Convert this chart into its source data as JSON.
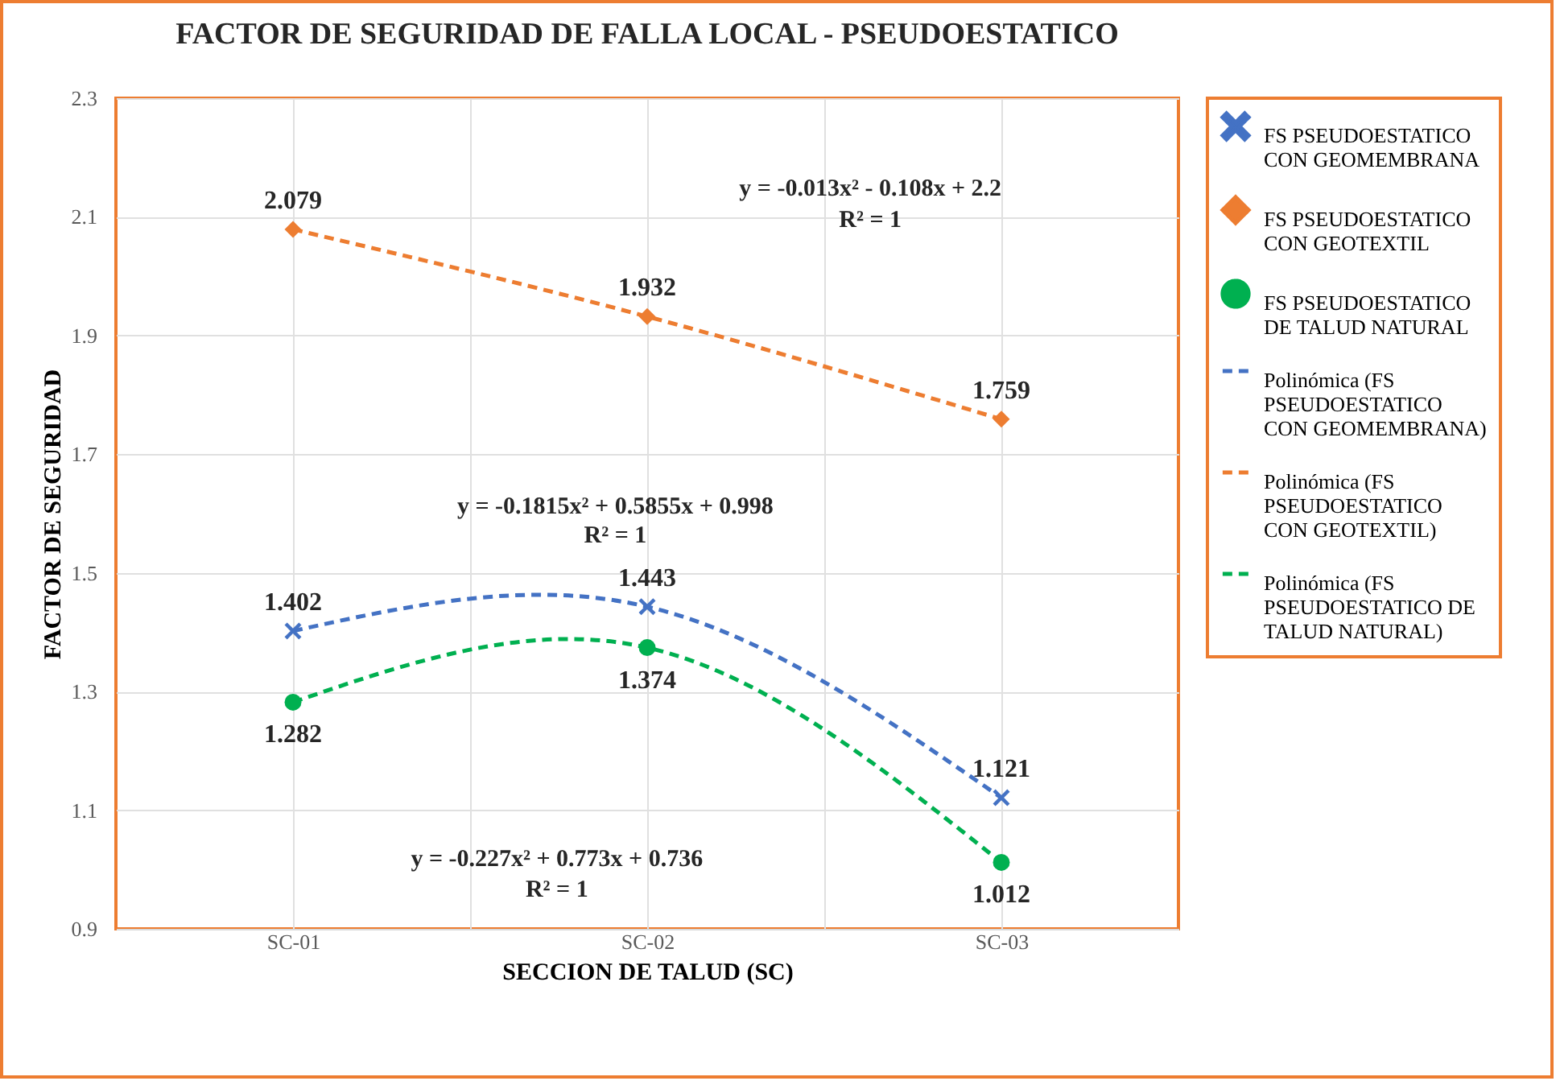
{
  "chart_data": {
    "type": "scatter",
    "title": "FACTOR DE SEGURIDAD DE FALLA LOCAL - PSEUDOESTATICO",
    "xlabel": "SECCION DE TALUD (SC)",
    "ylabel": "FACTOR DE SEGURIDAD",
    "categories": [
      "SC-01",
      "SC-02",
      "SC-03"
    ],
    "ylim": [
      0.9,
      2.3
    ],
    "yticks": [
      0.9,
      1.1,
      1.3,
      1.5,
      1.7,
      1.9,
      2.1,
      2.3
    ],
    "grid": true,
    "legend": "right",
    "series": [
      {
        "name": "FS PSEUDOESTATICO CON GEOMEMBRANA",
        "type": "scatter",
        "marker": "cross",
        "color": "#4472c4",
        "values": [
          1.402,
          1.443,
          1.121
        ],
        "value_labels": [
          "1.402",
          "1.443",
          "1.121"
        ]
      },
      {
        "name": "FS PSEUDOESTATICO CON GEOTEXTIL",
        "type": "scatter",
        "marker": "diamond",
        "color": "#ed7d31",
        "values": [
          2.079,
          1.932,
          1.759
        ],
        "value_labels": [
          "2.079",
          "1.932",
          "1.759"
        ]
      },
      {
        "name": "FS PSEUDOESTATICO DE TALUD NATURAL",
        "type": "scatter",
        "marker": "circle",
        "color": "#00b050",
        "values": [
          1.282,
          1.374,
          1.012
        ],
        "value_labels": [
          "1.282",
          "1.374",
          "1.012"
        ]
      },
      {
        "name": "Polinómica (FS PSEUDOESTATICO CON GEOMEMBRANA)",
        "type": "line",
        "line_style": "dashed",
        "color": "#4472c4",
        "values": [
          1.402,
          1.443,
          1.121
        ]
      },
      {
        "name": "Polinómica (FS PSEUDOESTATICO CON GEOTEXTIL)",
        "type": "line",
        "line_style": "dashed",
        "color": "#ed7d31",
        "values": [
          2.079,
          1.932,
          1.759
        ]
      },
      {
        "name": "Polinómica (FS PSEUDOESTATICO DE TALUD NATURAL)",
        "type": "line",
        "line_style": "dashed",
        "color": "#00b050",
        "values": [
          1.282,
          1.374,
          1.012
        ]
      }
    ],
    "annotations": [
      "y = -0.013x² - 0.108x + 2.2",
      "R² = 1",
      "y = -0.1815x² + 0.5855x + 0.998",
      "R² = 1",
      "y = -0.227x² + 0.773x + 0.736",
      "R² = 1"
    ]
  }
}
